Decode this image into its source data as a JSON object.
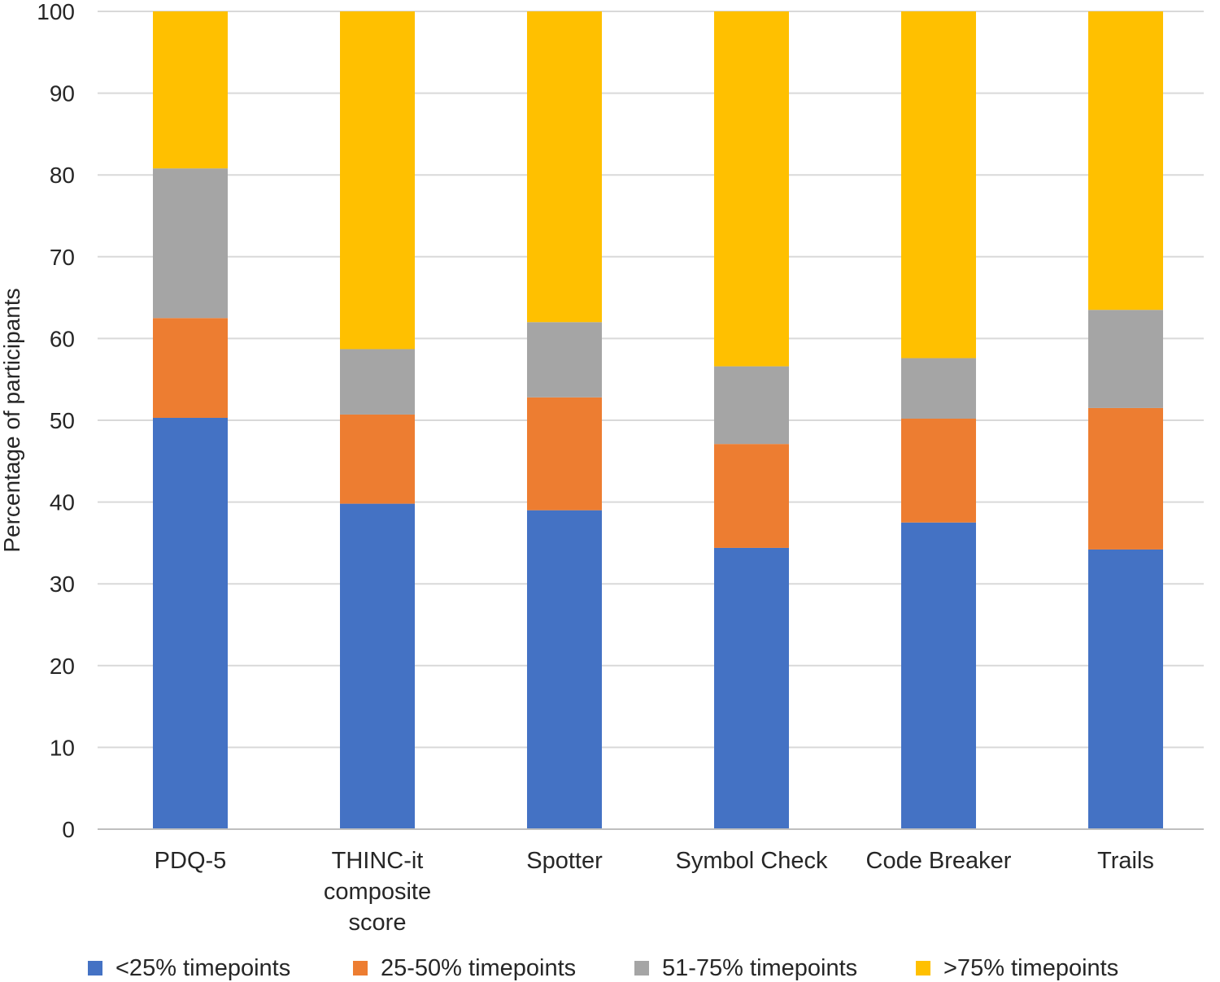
{
  "chart_data": {
    "type": "bar",
    "stacked": true,
    "title": "",
    "xlabel": "",
    "ylabel": "Percentage of participants",
    "ylim": [
      0,
      100
    ],
    "yticks": [
      "0",
      "10",
      "20",
      "30",
      "40",
      "50",
      "60",
      "70",
      "80",
      "90",
      "100"
    ],
    "grid": true,
    "legend_position": "bottom",
    "categories": [
      [
        "PDQ-5"
      ],
      [
        "THINC-it",
        "composite",
        "score"
      ],
      [
        "Spotter"
      ],
      [
        "Symbol Check"
      ],
      [
        "Code Breaker"
      ],
      [
        "Trails"
      ]
    ],
    "series": [
      {
        "name": "<25% timepoints",
        "color": "#4472c4",
        "values": [
          50.3,
          39.8,
          39.0,
          34.4,
          37.5,
          34.2
        ]
      },
      {
        "name": "25-50% timepoints",
        "color": "#ed7d31",
        "values": [
          12.2,
          10.9,
          13.8,
          12.7,
          12.7,
          17.3
        ]
      },
      {
        "name": "51-75% timepoints",
        "color": "#a5a5a5",
        "values": [
          18.3,
          8.0,
          9.2,
          9.5,
          7.4,
          12.0
        ]
      },
      {
        "name": ">75% timepoints",
        "color": "#ffc000",
        "values": [
          19.2,
          41.3,
          38.0,
          43.4,
          42.4,
          36.5
        ]
      }
    ]
  }
}
